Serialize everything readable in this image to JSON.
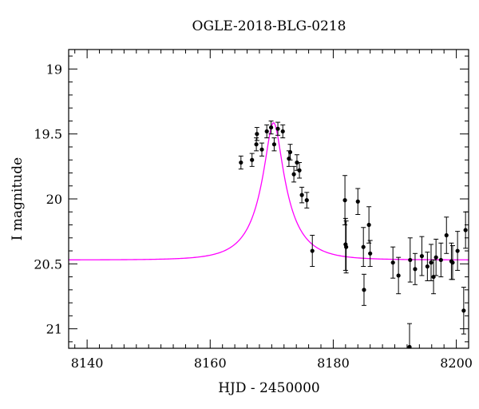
{
  "chart_data": {
    "type": "scatter",
    "title": "OGLE-2018-BLG-0218",
    "xlabel": "HJD - 2450000",
    "ylabel": "I magnitude",
    "xlim": [
      8137,
      8202
    ],
    "ylim": [
      21.15,
      18.85
    ],
    "y_inverted": true,
    "x_ticks": [
      8140,
      8160,
      8180,
      8200
    ],
    "y_ticks": [
      19,
      19.5,
      20,
      20.5,
      21
    ],
    "x_tick_labels": [
      "8140",
      "8160",
      "8180",
      "8200"
    ],
    "y_tick_labels": [
      "19",
      "19.5",
      "20",
      "20.5",
      "21"
    ],
    "x_minor_step": 2,
    "y_minor_step": 0.1,
    "grid": false,
    "colors": {
      "model": "#ff00ff",
      "points": "#000000",
      "axes": "#000000"
    },
    "series": [
      {
        "kind": "points",
        "x": [
          8165.0,
          8166.8,
          8167.5,
          8167.6,
          8168.4,
          8169.2,
          8169.9,
          8170.4,
          8171.0,
          8171.8,
          8172.8,
          8173.0,
          8173.6,
          8174.1,
          8174.5,
          8174.9,
          8175.7,
          8176.6,
          8181.9,
          8182.0,
          8182.1,
          8184.0,
          8184.9,
          8185.0,
          8185.8,
          8186.0,
          8189.7,
          8190.6,
          8192.4,
          8192.5,
          8193.3,
          8194.4,
          8195.3,
          8195.9,
          8196.3,
          8196.7,
          8197.5,
          8198.4,
          8199.2,
          8199.4,
          8200.2,
          8201.2,
          8201.5
        ],
        "y": [
          19.72,
          19.7,
          19.58,
          19.5,
          19.62,
          19.48,
          19.45,
          19.58,
          19.46,
          19.48,
          19.69,
          19.64,
          19.81,
          19.72,
          19.78,
          19.97,
          20.01,
          20.4,
          20.01,
          20.35,
          20.37,
          20.02,
          20.37,
          20.7,
          20.2,
          20.42,
          20.49,
          20.59,
          21.14,
          20.47,
          20.54,
          20.44,
          20.52,
          20.49,
          20.6,
          20.45,
          20.47,
          20.28,
          20.48,
          20.49,
          20.4,
          20.86,
          20.24
        ],
        "err": [
          0.05,
          0.05,
          0.05,
          0.05,
          0.05,
          0.05,
          0.05,
          0.05,
          0.05,
          0.05,
          0.06,
          0.06,
          0.06,
          0.06,
          0.06,
          0.06,
          0.06,
          0.12,
          0.19,
          0.2,
          0.2,
          0.1,
          0.15,
          0.12,
          0.14,
          0.1,
          0.12,
          0.14,
          0.18,
          0.17,
          0.12,
          0.15,
          0.11,
          0.14,
          0.13,
          0.14,
          0.13,
          0.14,
          0.14,
          0.13,
          0.15,
          0.18,
          0.14
        ]
      },
      {
        "kind": "model-curve",
        "t0": 8170.3,
        "u0": 0.23,
        "tE": 5.5,
        "base_mag": 20.47,
        "fs": 0.48
      }
    ]
  }
}
